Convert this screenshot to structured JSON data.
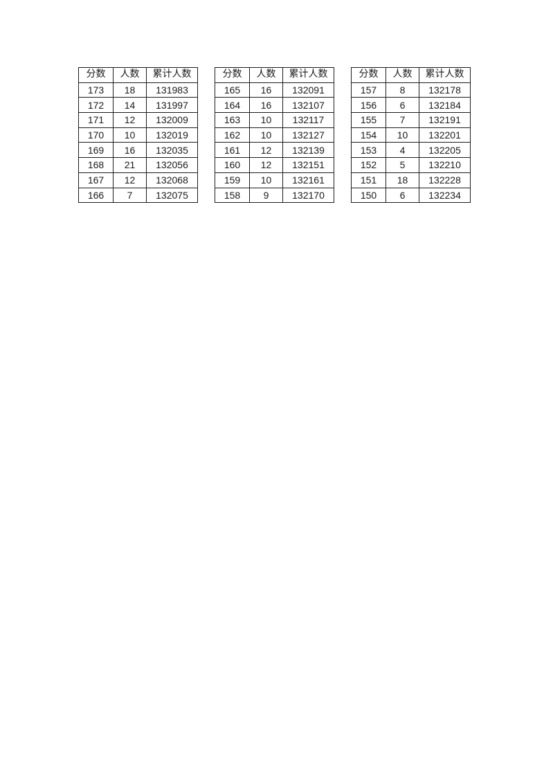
{
  "page": {
    "background_color": "#ffffff",
    "border_color": "#1a1a1a",
    "text_color": "#1a1a1a"
  },
  "tables": [
    {
      "headers": [
        "分数",
        "人数",
        "累计人数"
      ],
      "rows": [
        [
          "173",
          "18",
          "131983"
        ],
        [
          "172",
          "14",
          "131997"
        ],
        [
          "171",
          "12",
          "132009"
        ],
        [
          "170",
          "10",
          "132019"
        ],
        [
          "169",
          "16",
          "132035"
        ],
        [
          "168",
          "21",
          "132056"
        ],
        [
          "167",
          "12",
          "132068"
        ],
        [
          "166",
          "7",
          "132075"
        ]
      ]
    },
    {
      "headers": [
        "分数",
        "人数",
        "累计人数"
      ],
      "rows": [
        [
          "165",
          "16",
          "132091"
        ],
        [
          "164",
          "16",
          "132107"
        ],
        [
          "163",
          "10",
          "132117"
        ],
        [
          "162",
          "10",
          "132127"
        ],
        [
          "161",
          "12",
          "132139"
        ],
        [
          "160",
          "12",
          "132151"
        ],
        [
          "159",
          "10",
          "132161"
        ],
        [
          "158",
          "9",
          "132170"
        ]
      ]
    },
    {
      "headers": [
        "分数",
        "人数",
        "累计人数"
      ],
      "rows": [
        [
          "157",
          "8",
          "132178"
        ],
        [
          "156",
          "6",
          "132184"
        ],
        [
          "155",
          "7",
          "132191"
        ],
        [
          "154",
          "10",
          "132201"
        ],
        [
          "153",
          "4",
          "132205"
        ],
        [
          "152",
          "5",
          "132210"
        ],
        [
          "151",
          "18",
          "132228"
        ],
        [
          "150",
          "6",
          "132234"
        ]
      ]
    }
  ]
}
